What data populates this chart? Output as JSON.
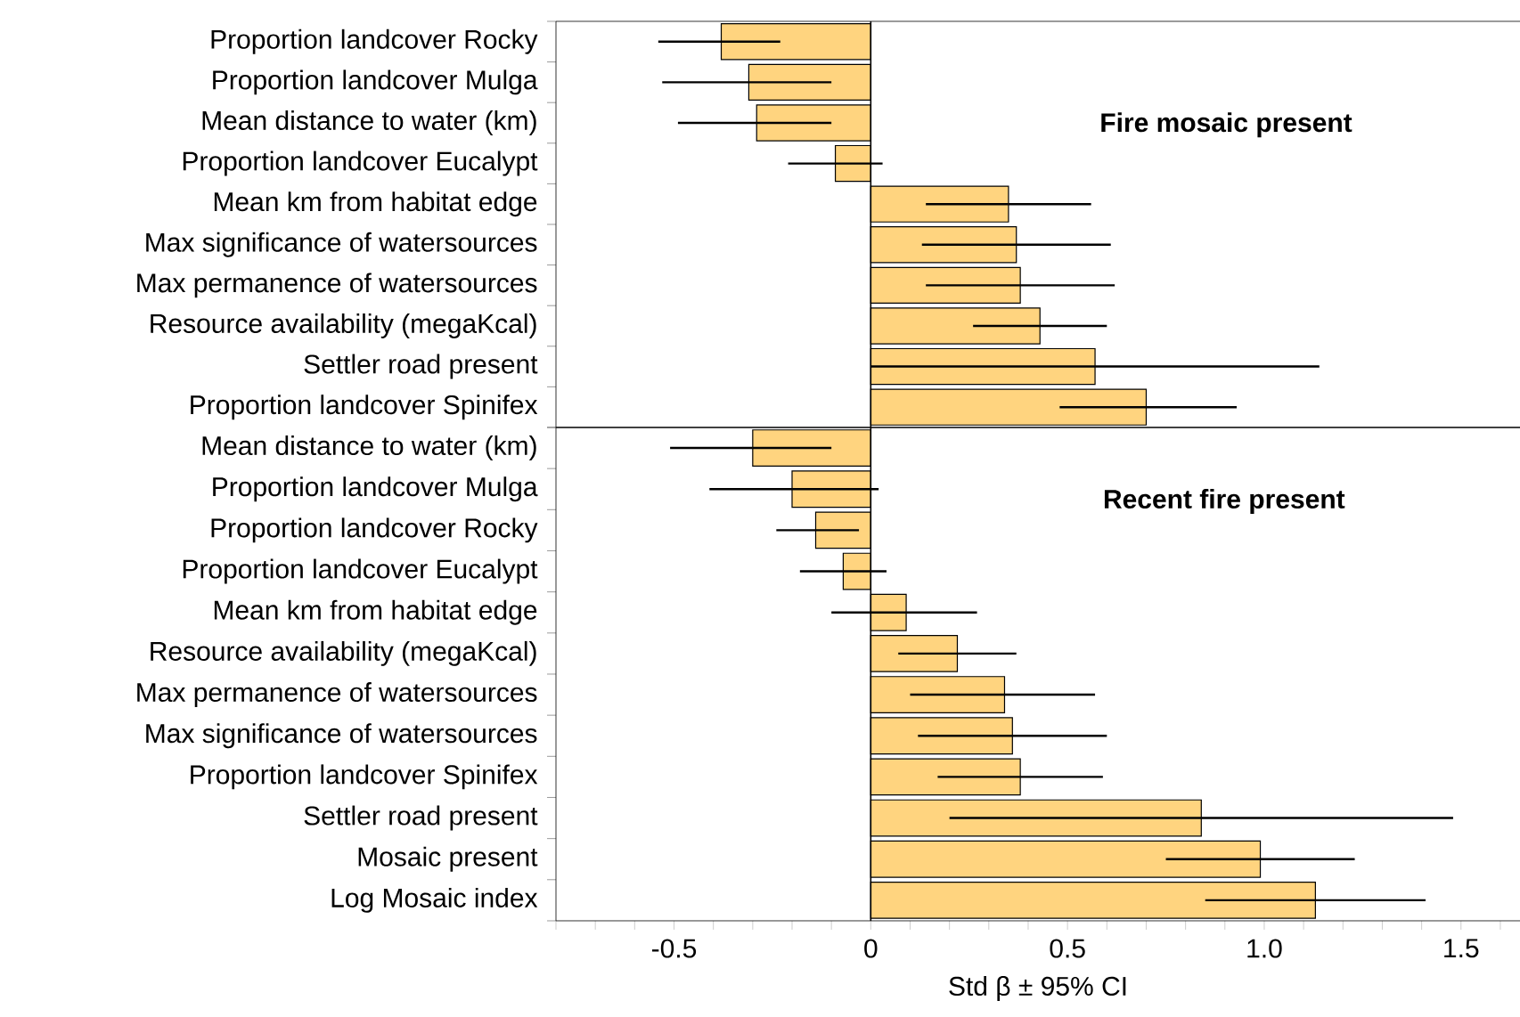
{
  "chart_data": [
    {
      "type": "bar",
      "orientation": "horizontal",
      "title": "Fire mosaic present",
      "tick_labels": "y",
      "color": "#ffd47f",
      "xlim": [
        -0.8,
        1.65
      ],
      "categories": [
        "Proportion landcover Rocky",
        "Proportion landcover Mulga",
        "Mean distance to water (km)",
        "Proportion landcover Eucalypt",
        "Mean km from habitat edge",
        "Max significance of watersources",
        "Max permanence of watersources",
        "Resource availability (megaKcal)",
        "Settler road present",
        "Proportion landcover Spinifex"
      ],
      "values": [
        -0.38,
        -0.31,
        -0.29,
        -0.09,
        0.35,
        0.37,
        0.38,
        0.43,
        0.57,
        0.7
      ],
      "errors": [
        [
          -0.54,
          -0.23
        ],
        [
          -0.53,
          -0.1
        ],
        [
          -0.49,
          -0.1
        ],
        [
          -0.21,
          0.03
        ],
        [
          0.14,
          0.56
        ],
        [
          0.13,
          0.61
        ],
        [
          0.14,
          0.62
        ],
        [
          0.26,
          0.6
        ],
        [
          0.0,
          1.14
        ],
        [
          0.48,
          0.93
        ]
      ]
    },
    {
      "type": "bar",
      "orientation": "horizontal",
      "title": "Recent fire present",
      "xlabel": "Std β ± 95% CI",
      "color": "#ffd47f",
      "xlim": [
        -0.8,
        1.65
      ],
      "xticks": [
        {
          "value": -0.8,
          "label": null
        },
        {
          "value": -0.7,
          "label": null
        },
        {
          "value": -0.6,
          "label": null
        },
        -0.5,
        {
          "value": -0.4,
          "label": null
        },
        {
          "value": -0.3,
          "label": null
        },
        {
          "value": -0.2,
          "label": null
        },
        {
          "value": -0.1,
          "label": null
        },
        0,
        {
          "value": 0.1,
          "label": null
        },
        {
          "value": 0.2,
          "label": null
        },
        {
          "value": 0.3,
          "label": null
        },
        {
          "value": 0.4,
          "label": null
        },
        0.5,
        {
          "value": 0.6,
          "label": null
        },
        {
          "value": 0.7,
          "label": null
        },
        {
          "value": 0.8,
          "label": null
        },
        {
          "value": 0.9,
          "label": null
        },
        {
          "value": 1.0,
          "label": "1.0"
        },
        {
          "value": 1.1,
          "label": null
        },
        {
          "value": 1.2,
          "label": null
        },
        {
          "value": 1.3,
          "label": null
        },
        {
          "value": 1.4,
          "label": null
        },
        1.5,
        {
          "value": 1.6,
          "label": null
        }
      ],
      "categories": [
        "Mean distance to water (km)",
        "Proportion landcover Mulga",
        "Proportion landcover Rocky",
        "Proportion landcover Eucalypt",
        "Mean km from habitat edge",
        "Resource availability (megaKcal)",
        "Max permanence of watersources",
        "Max significance of watersources",
        "Proportion landcover Spinifex",
        "Settler road present",
        "Mosaic present",
        "Log Mosaic index"
      ],
      "values": [
        -0.3,
        -0.2,
        -0.14,
        -0.07,
        0.09,
        0.22,
        0.34,
        0.36,
        0.38,
        0.84,
        0.99,
        1.13
      ],
      "errors": [
        [
          -0.51,
          -0.1
        ],
        [
          -0.41,
          0.02
        ],
        [
          -0.24,
          -0.03
        ],
        [
          -0.18,
          0.04
        ],
        [
          -0.1,
          0.27
        ],
        [
          0.07,
          0.37
        ],
        [
          0.1,
          0.57
        ],
        [
          0.12,
          0.6
        ],
        [
          0.17,
          0.59
        ],
        [
          0.2,
          1.48
        ],
        [
          0.75,
          1.23
        ],
        [
          0.85,
          1.41
        ]
      ]
    }
  ]
}
